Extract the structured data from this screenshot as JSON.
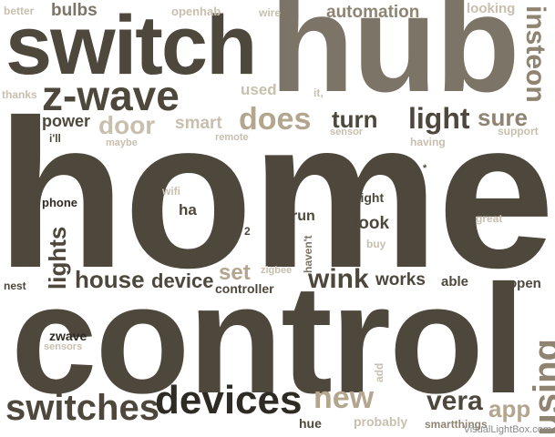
{
  "palette": {
    "dark": "#4d473c",
    "mid": "#7c7466",
    "taupe": "#8f8472",
    "tan": "#b3a58e",
    "light": "#c8bfae",
    "pale": "#d4cdbf",
    "black": "#2e2a24"
  },
  "words": [
    {
      "text": "home",
      "color": "dark"
    },
    {
      "text": "control",
      "color": "dark"
    },
    {
      "text": "hub",
      "color": "mid"
    },
    {
      "text": "switch",
      "color": "dark"
    },
    {
      "text": "z-wave",
      "color": "dark"
    },
    {
      "text": "switches",
      "color": "dark"
    },
    {
      "text": "devices",
      "color": "black"
    },
    {
      "text": "using",
      "color": "taupe"
    },
    {
      "text": "new",
      "color": "tan"
    },
    {
      "text": "vera",
      "color": "dark"
    },
    {
      "text": "does",
      "color": "tan"
    },
    {
      "text": "light",
      "color": "dark"
    },
    {
      "text": "turn",
      "color": "dark"
    },
    {
      "text": "sure",
      "color": "taupe"
    },
    {
      "text": "door",
      "color": "light"
    },
    {
      "text": "power",
      "color": "dark"
    },
    {
      "text": "smart",
      "color": "light"
    },
    {
      "text": "insteon",
      "color": "taupe"
    },
    {
      "text": "automation",
      "color": "taupe"
    },
    {
      "text": "bulbs",
      "color": "mid"
    },
    {
      "text": "better",
      "color": "light"
    },
    {
      "text": "openhab",
      "color": "light"
    },
    {
      "text": "wire",
      "color": "light"
    },
    {
      "text": "looking",
      "color": "light"
    },
    {
      "text": "thanks",
      "color": "light"
    },
    {
      "text": "used",
      "color": "light"
    },
    {
      "text": "it,",
      "color": "light"
    },
    {
      "text": "i'll",
      "color": "dark"
    },
    {
      "text": "maybe",
      "color": "light"
    },
    {
      "text": "remote",
      "color": "light"
    },
    {
      "text": "sensor",
      "color": "light"
    },
    {
      "text": "having",
      "color": "light"
    },
    {
      "text": "support",
      "color": "light"
    },
    {
      "text": "*",
      "color": "dark"
    },
    {
      "text": "phone",
      "color": "black"
    },
    {
      "text": "wifi",
      "color": "light"
    },
    {
      "text": "ha",
      "color": "dark"
    },
    {
      "text": "right",
      "color": "dark"
    },
    {
      "text": "run",
      "color": "dark"
    },
    {
      "text": "haven't",
      "color": "mid"
    },
    {
      "text": "look",
      "color": "dark"
    },
    {
      "text": "great",
      "color": "light"
    },
    {
      "text": "2",
      "color": "dark"
    },
    {
      "text": "buy",
      "color": "light"
    },
    {
      "text": "lights",
      "color": "dark"
    },
    {
      "text": "house",
      "color": "dark"
    },
    {
      "text": "device",
      "color": "dark"
    },
    {
      "text": "set",
      "color": "tan"
    },
    {
      "text": "zigbee",
      "color": "light"
    },
    {
      "text": "controller",
      "color": "dark"
    },
    {
      "text": "wink",
      "color": "dark"
    },
    {
      "text": "works",
      "color": "dark"
    },
    {
      "text": "able",
      "color": "dark"
    },
    {
      "text": "open",
      "color": "dark"
    },
    {
      "text": "nest",
      "color": "dark"
    },
    {
      "text": "zwave",
      "color": "black"
    },
    {
      "text": "sensors",
      "color": "light"
    },
    {
      "text": "add",
      "color": "light"
    },
    {
      "text": "app",
      "color": "tan"
    },
    {
      "text": "hue",
      "color": "dark"
    },
    {
      "text": "probably",
      "color": "light"
    },
    {
      "text": "smartthings",
      "color": "taupe"
    }
  ],
  "watermark": "VisualLightBox.com"
}
